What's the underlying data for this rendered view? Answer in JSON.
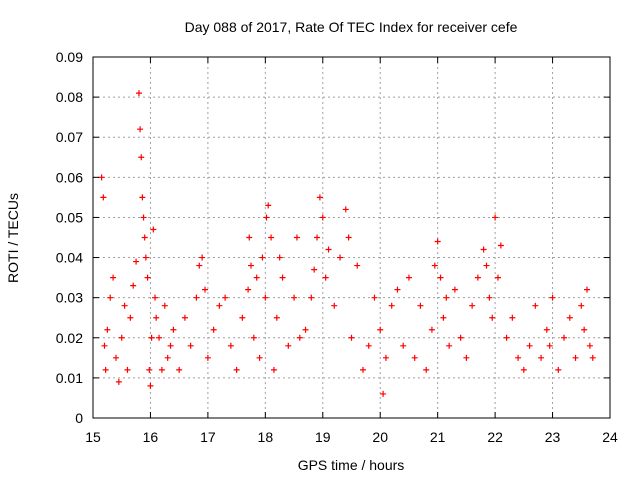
{
  "chart_data": {
    "type": "scatter",
    "title": "Day 088 of 2017, Rate Of TEC Index for receiver cefe",
    "xlabel": "GPS time / hours",
    "ylabel": "ROTI / TECUs",
    "xlim": [
      15,
      24
    ],
    "ylim": [
      0,
      0.09
    ],
    "x_ticks": [
      "15",
      "16",
      "17",
      "18",
      "19",
      "20",
      "21",
      "22",
      "23",
      "24"
    ],
    "y_ticks": [
      "0",
      "0.01",
      "0.02",
      "0.03",
      "0.04",
      "0.05",
      "0.06",
      "0.07",
      "0.08",
      "0.09"
    ],
    "grid": true,
    "marker": "+",
    "color": "#ff0000",
    "series": [
      {
        "name": "",
        "x": [
          15.15,
          15.18,
          15.2,
          15.22,
          15.25,
          15.3,
          15.35,
          15.4,
          15.45,
          15.5,
          15.55,
          15.6,
          15.65,
          15.7,
          15.75,
          15.8,
          15.82,
          15.84,
          15.86,
          15.88,
          15.9,
          15.92,
          15.95,
          15.98,
          16.0,
          16.02,
          16.05,
          16.08,
          16.1,
          16.15,
          16.2,
          16.25,
          16.3,
          16.35,
          16.4,
          16.5,
          16.6,
          16.7,
          16.8,
          16.85,
          16.9,
          16.95,
          17.0,
          17.1,
          17.2,
          17.3,
          17.4,
          17.5,
          17.6,
          17.7,
          17.72,
          17.75,
          17.8,
          17.85,
          17.9,
          17.95,
          18.0,
          18.02,
          18.05,
          18.1,
          18.15,
          18.2,
          18.25,
          18.3,
          18.4,
          18.5,
          18.55,
          18.6,
          18.7,
          18.8,
          18.85,
          18.9,
          18.95,
          19.0,
          19.05,
          19.1,
          19.2,
          19.3,
          19.4,
          19.45,
          19.5,
          19.6,
          19.7,
          19.8,
          19.9,
          20.0,
          20.05,
          20.1,
          20.2,
          20.3,
          20.4,
          20.5,
          20.6,
          20.7,
          20.8,
          20.9,
          20.95,
          21.0,
          21.05,
          21.1,
          21.15,
          21.2,
          21.3,
          21.4,
          21.5,
          21.6,
          21.7,
          21.8,
          21.85,
          21.9,
          21.95,
          22.0,
          22.05,
          22.1,
          22.2,
          22.3,
          22.4,
          22.5,
          22.6,
          22.7,
          22.8,
          22.9,
          22.95,
          23.0,
          23.1,
          23.2,
          23.3,
          23.4,
          23.5,
          23.55,
          23.6,
          23.65,
          23.7
        ],
        "y": [
          0.06,
          0.055,
          0.018,
          0.012,
          0.022,
          0.03,
          0.035,
          0.015,
          0.009,
          0.02,
          0.028,
          0.012,
          0.025,
          0.033,
          0.039,
          0.081,
          0.072,
          0.065,
          0.055,
          0.05,
          0.045,
          0.04,
          0.035,
          0.012,
          0.008,
          0.02,
          0.047,
          0.03,
          0.025,
          0.02,
          0.012,
          0.028,
          0.015,
          0.018,
          0.022,
          0.012,
          0.025,
          0.018,
          0.03,
          0.038,
          0.04,
          0.032,
          0.015,
          0.022,
          0.028,
          0.03,
          0.018,
          0.012,
          0.025,
          0.032,
          0.045,
          0.038,
          0.02,
          0.035,
          0.015,
          0.04,
          0.03,
          0.05,
          0.053,
          0.045,
          0.012,
          0.025,
          0.04,
          0.035,
          0.018,
          0.03,
          0.045,
          0.02,
          0.022,
          0.03,
          0.037,
          0.045,
          0.055,
          0.05,
          0.035,
          0.042,
          0.028,
          0.04,
          0.052,
          0.045,
          0.02,
          0.038,
          0.012,
          0.018,
          0.03,
          0.022,
          0.006,
          0.015,
          0.028,
          0.032,
          0.018,
          0.035,
          0.015,
          0.028,
          0.012,
          0.022,
          0.038,
          0.044,
          0.035,
          0.025,
          0.03,
          0.018,
          0.032,
          0.02,
          0.015,
          0.028,
          0.035,
          0.042,
          0.038,
          0.03,
          0.025,
          0.05,
          0.035,
          0.043,
          0.02,
          0.025,
          0.015,
          0.012,
          0.018,
          0.028,
          0.015,
          0.022,
          0.018,
          0.03,
          0.012,
          0.02,
          0.025,
          0.015,
          0.028,
          0.022,
          0.032,
          0.018,
          0.015
        ]
      }
    ]
  }
}
